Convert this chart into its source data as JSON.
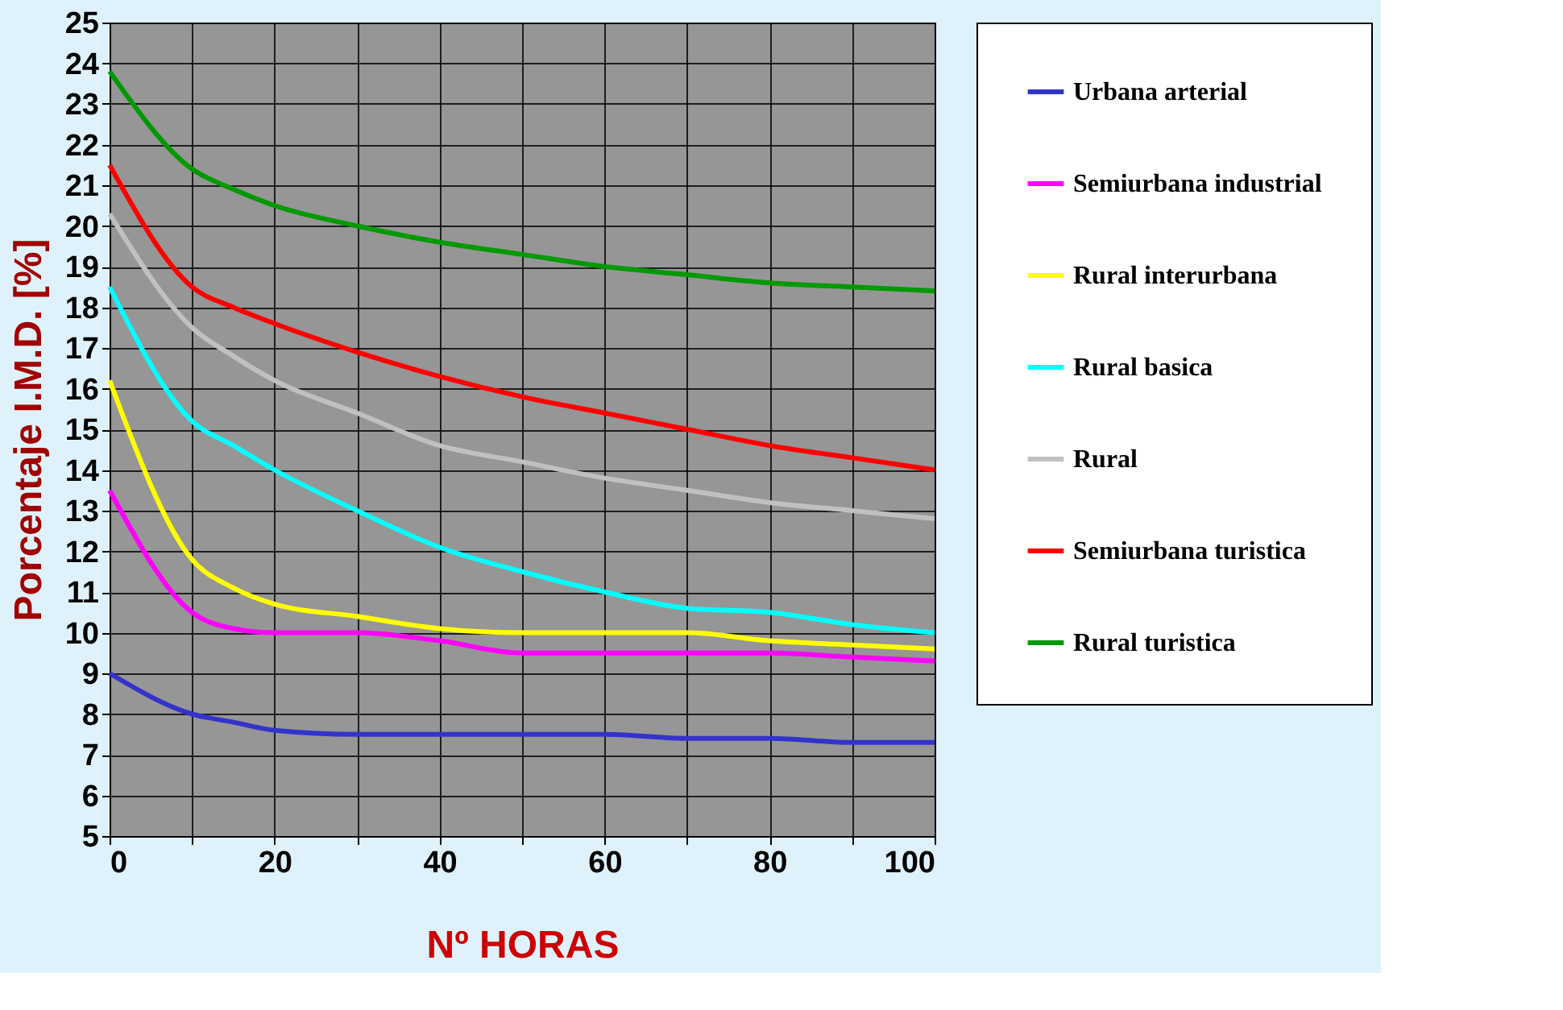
{
  "chart_data": {
    "type": "line",
    "xlabel": "Nº HORAS",
    "ylabel": "Porcentaje I.M.D. [%]",
    "x": [
      0,
      10,
      15,
      20,
      30,
      40,
      50,
      60,
      70,
      80,
      90,
      100
    ],
    "xlim": [
      0,
      100
    ],
    "xticks": [
      0,
      {
        "value": 10,
        "label": null
      },
      20,
      {
        "value": 30,
        "label": null
      },
      40,
      {
        "value": 50,
        "label": null
      },
      60,
      {
        "value": 70,
        "label": null
      },
      80,
      {
        "value": 90,
        "label": null
      },
      100
    ],
    "ylim": [
      5,
      25
    ],
    "yticks": [
      5,
      6,
      7,
      8,
      9,
      10,
      11,
      12,
      13,
      14,
      15,
      16,
      17,
      18,
      19,
      20,
      21,
      22,
      23,
      24,
      25
    ],
    "grid": true,
    "legend": "right",
    "marker": "none",
    "line_style": "solid",
    "series": [
      {
        "name": "Urbana arterial",
        "color": "#3333cc",
        "values": [
          9.0,
          8.0,
          7.8,
          7.6,
          7.5,
          7.5,
          7.5,
          7.5,
          7.4,
          7.4,
          7.3,
          7.3
        ]
      },
      {
        "name": "Semiurbana industrial",
        "color": "#ff00ff",
        "values": [
          13.5,
          10.5,
          10.1,
          10.0,
          10.0,
          9.8,
          9.5,
          9.5,
          9.5,
          9.5,
          9.4,
          9.3
        ]
      },
      {
        "name": "Rural interurbana",
        "color": "#ffff00",
        "values": [
          16.2,
          11.8,
          11.1,
          10.7,
          10.4,
          10.1,
          10.0,
          10.0,
          10.0,
          9.8,
          9.7,
          9.6
        ]
      },
      {
        "name": "Rural basica",
        "color": "#00ffff",
        "values": [
          18.5,
          15.2,
          14.6,
          14.0,
          13.0,
          12.1,
          11.5,
          11.0,
          10.6,
          10.5,
          10.2,
          10.0
        ]
      },
      {
        "name": "Rural",
        "color": "#c0c0c0",
        "values": [
          20.3,
          17.5,
          16.8,
          16.2,
          15.4,
          14.6,
          14.2,
          13.8,
          13.5,
          13.2,
          13.0,
          12.8
        ]
      },
      {
        "name": "Semiurbana turistica",
        "color": "#ff0000",
        "values": [
          21.5,
          18.5,
          18.0,
          17.6,
          16.9,
          16.3,
          15.8,
          15.4,
          15.0,
          14.6,
          14.3,
          14.0
        ]
      },
      {
        "name": "Rural turistica",
        "color": "#009900",
        "values": [
          23.8,
          21.4,
          20.9,
          20.5,
          20.0,
          19.6,
          19.3,
          19.0,
          18.8,
          18.6,
          18.5,
          18.4
        ]
      }
    ]
  }
}
